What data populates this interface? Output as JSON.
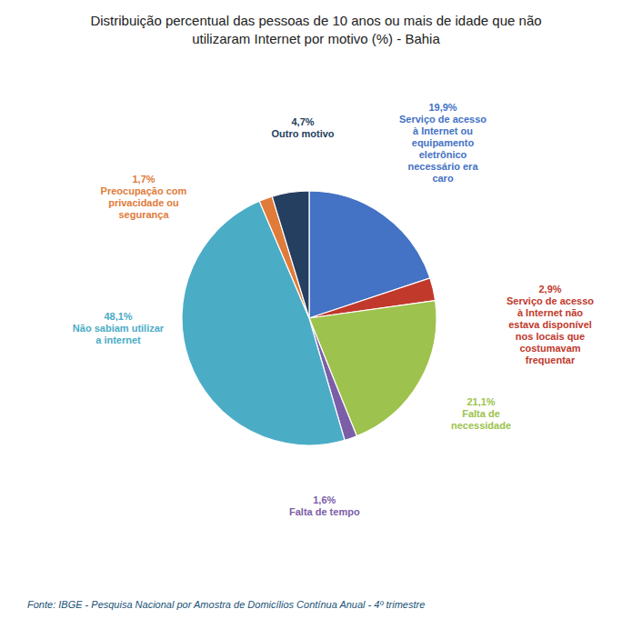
{
  "chart_data": {
    "type": "pie",
    "title": "Distribuição percentual das pessoas de 10 anos ou mais de idade que não\nutilizaram Internet por motivo (%) - Bahia",
    "annotations": [
      "Fonte: IBGE - Pesquisa Nacional por Amostra de Domicílios Contínua Anual - 4º trimestre"
    ],
    "categories": [
      "Serviço de acesso\nà Internet ou\nequipamento\neletrônico\nnecessário era\ncaro",
      "Serviço de acesso\nà Internet não\nestava disponível\nnos locais que\ncostumavam\nfrequentar",
      "Falta de\nnecessidade",
      "Falta de tempo",
      "Não sabiam utilizar\na internet",
      "Preocupação com\nprivacidade ou\nsegurança",
      "Outro motivo"
    ],
    "values": [
      19.9,
      2.9,
      21.1,
      1.6,
      48.1,
      1.7,
      4.7
    ],
    "value_labels": [
      "19,9%",
      "2,9%",
      "21,1%",
      "1,6%",
      "48,1%",
      "1,7%",
      "4,7%"
    ],
    "colors": [
      "#4472C4",
      "#C0392B",
      "#9DC24D",
      "#7B5EA7",
      "#4BACC6",
      "#E07B39",
      "#243F60"
    ],
    "data_labels": true
  }
}
